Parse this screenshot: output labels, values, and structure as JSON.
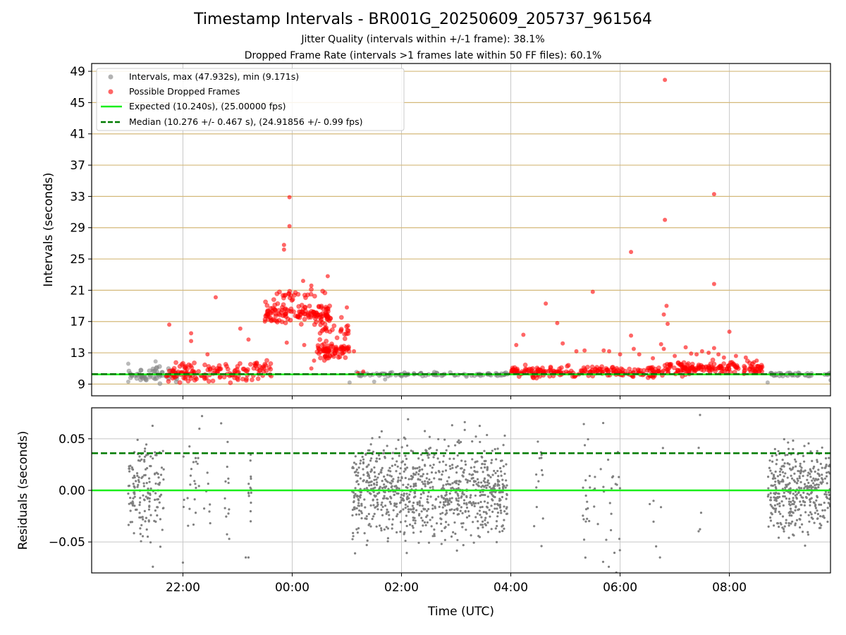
{
  "figure": {
    "title": "Timestamp Intervals - BR001G_20250609_205737_961564",
    "subtitle_1": "Jitter Quality (intervals within +/-1 frame): 38.1%",
    "subtitle_2": "Dropped Frame Rate (intervals >1 frames late within 50 FF files): 60.1%"
  },
  "colors": {
    "intervals": "#808080",
    "dropped": "#ff0000",
    "expected": "#1aee1a",
    "median": "#007a00",
    "hgrid_top": "#d4b97a",
    "grid": "#c8c8c8"
  },
  "chart_data": [
    {
      "type": "scatter",
      "panel": "intervals",
      "ylabel": "Intervals (seconds)",
      "xlabel": "",
      "x_unit": "hours UTC (values above 24 are the next day)",
      "xlim": [
        20.33,
        33.85
      ],
      "ylim": [
        7.5,
        50
      ],
      "yticks": [
        9,
        13,
        17,
        21,
        25,
        29,
        33,
        37,
        41,
        45,
        49
      ],
      "xticks": [
        22,
        24,
        26,
        28,
        30,
        32
      ],
      "xtick_labels": [
        "22:00",
        "00:00",
        "02:00",
        "04:00",
        "06:00",
        "08:00"
      ],
      "grid": true,
      "legend_position": "top-left",
      "legend": [
        "Intervals, max (47.932s), min (9.171s)",
        "Possible Dropped Frames",
        "Expected (10.240s), (25.00000 fps)",
        "Median (10.276 +/- 0.467 s), (24.91856 +/- 0.99 fps)"
      ],
      "lines": {
        "expected": 10.24,
        "median": 10.276
      },
      "series": [
        {
          "name": "Intervals, max (47.932s), min (9.171s)",
          "bands": [
            {
              "x0": 21.0,
              "x1": 21.9,
              "center": 10.2,
              "spread": 0.8,
              "n": 60
            },
            {
              "x0": 25.1,
              "x1": 27.95,
              "center": 10.24,
              "spread": 0.2,
              "n": 90
            },
            {
              "x0": 32.7,
              "x1": 33.85,
              "center": 10.24,
              "spread": 0.2,
              "n": 40
            }
          ],
          "points": [
            [
              21.0,
              9.3
            ],
            [
              21.0,
              11.6
            ],
            [
              21.5,
              11.9
            ],
            [
              25.05,
              9.2
            ],
            [
              25.5,
              9.3
            ],
            [
              25.7,
              9.6
            ],
            [
              32.7,
              9.2
            ],
            [
              33.85,
              9.5
            ]
          ]
        },
        {
          "name": "Possible Dropped Frames",
          "bands": [
            {
              "x0": 21.7,
              "x1": 22.2,
              "center": 10.5,
              "spread": 1.0,
              "n": 50
            },
            {
              "x0": 22.2,
              "x1": 23.3,
              "center": 10.5,
              "spread": 1.2,
              "n": 70
            },
            {
              "x0": 23.3,
              "x1": 23.65,
              "center": 11.0,
              "spread": 1.5,
              "n": 25
            },
            {
              "x0": 23.5,
              "x1": 24.7,
              "center": 18.0,
              "spread": 1.2,
              "n": 140
            },
            {
              "x0": 23.6,
              "x1": 24.6,
              "center": 20.5,
              "spread": 0.8,
              "n": 25
            },
            {
              "x0": 24.45,
              "x1": 25.05,
              "center": 13.2,
              "spread": 0.8,
              "n": 80
            },
            {
              "x0": 24.5,
              "x1": 25.05,
              "center": 16.0,
              "spread": 1.0,
              "n": 25
            },
            {
              "x0": 28.0,
              "x1": 29.6,
              "center": 10.6,
              "spread": 0.6,
              "n": 120
            },
            {
              "x0": 29.6,
              "x1": 30.8,
              "center": 10.6,
              "spread": 0.6,
              "n": 90
            },
            {
              "x0": 30.8,
              "x1": 32.6,
              "center": 11.0,
              "spread": 0.7,
              "n": 160
            }
          ],
          "points": [
            [
              21.75,
              16.6
            ],
            [
              22.15,
              15.5
            ],
            [
              22.15,
              14.5
            ],
            [
              22.6,
              20.1
            ],
            [
              22.45,
              12.8
            ],
            [
              23.05,
              16.1
            ],
            [
              23.2,
              14.7
            ],
            [
              23.5,
              17.0
            ],
            [
              23.9,
              14.3
            ],
            [
              23.85,
              26.8
            ],
            [
              23.85,
              26.2
            ],
            [
              23.95,
              29.2
            ],
            [
              23.95,
              32.9
            ],
            [
              24.2,
              22.2
            ],
            [
              24.35,
              21.6
            ],
            [
              24.65,
              22.8
            ],
            [
              25.0,
              18.8
            ],
            [
              24.22,
              14.0
            ],
            [
              24.4,
              12.0
            ],
            [
              24.35,
              11.0
            ],
            [
              25.13,
              13.2
            ],
            [
              25.2,
              10.4
            ],
            [
              25.3,
              10.6
            ],
            [
              28.1,
              14.0
            ],
            [
              28.23,
              15.3
            ],
            [
              28.64,
              19.3
            ],
            [
              28.85,
              16.8
            ],
            [
              28.95,
              14.2
            ],
            [
              29.2,
              13.2
            ],
            [
              29.35,
              13.3
            ],
            [
              29.5,
              20.8
            ],
            [
              29.7,
              13.3
            ],
            [
              29.8,
              13.2
            ],
            [
              30.0,
              12.8
            ],
            [
              30.2,
              15.2
            ],
            [
              30.2,
              25.9
            ],
            [
              30.25,
              13.5
            ],
            [
              30.35,
              12.8
            ],
            [
              30.6,
              12.3
            ],
            [
              30.75,
              14.1
            ],
            [
              30.8,
              13.5
            ],
            [
              30.8,
              17.9
            ],
            [
              30.82,
              47.9
            ],
            [
              30.82,
              30.0
            ],
            [
              30.85,
              19.0
            ],
            [
              30.87,
              16.7
            ],
            [
              31.0,
              12.6
            ],
            [
              31.2,
              13.7
            ],
            [
              31.3,
              12.9
            ],
            [
              31.4,
              12.8
            ],
            [
              31.5,
              13.2
            ],
            [
              31.62,
              13.0
            ],
            [
              31.72,
              33.3
            ],
            [
              31.72,
              21.8
            ],
            [
              31.72,
              13.6
            ],
            [
              31.8,
              12.8
            ],
            [
              31.9,
              12.4
            ],
            [
              32.0,
              15.7
            ],
            [
              32.12,
              12.6
            ],
            [
              32.3,
              12.4
            ],
            [
              32.45,
              11.8
            ],
            [
              32.5,
              12.0
            ]
          ]
        }
      ]
    },
    {
      "type": "scatter",
      "panel": "residuals",
      "ylabel": "Residuals (seconds)",
      "xlabel": "Time (UTC)",
      "x_unit": "hours UTC (values above 24 are the next day)",
      "xlim": [
        20.33,
        33.85
      ],
      "ylim": [
        -0.08,
        0.08
      ],
      "yticks": [
        -0.05,
        0.0,
        0.05
      ],
      "ytick_labels": [
        "−0.05",
        "0.00",
        "0.05"
      ],
      "xticks": [
        22,
        24,
        26,
        28,
        30,
        32
      ],
      "xtick_labels": [
        "22:00",
        "00:00",
        "02:00",
        "04:00",
        "06:00",
        "08:00"
      ],
      "grid": true,
      "lines": {
        "expected": 0.0,
        "median": 0.036
      },
      "series": [
        {
          "name": "",
          "bands": [
            {
              "x0": 21.0,
              "x1": 21.65,
              "sd": 0.022,
              "n": 160
            },
            {
              "x0": 22.0,
              "x1": 22.5,
              "sd": 0.03,
              "n": 30
            },
            {
              "x0": 22.75,
              "x1": 22.85,
              "sd": 0.028,
              "n": 12
            },
            {
              "x0": 23.2,
              "x1": 23.25,
              "sd": 0.03,
              "n": 14
            },
            {
              "x0": 25.1,
              "x1": 27.95,
              "sd": 0.023,
              "n": 900
            },
            {
              "x0": 28.4,
              "x1": 28.6,
              "sd": 0.04,
              "n": 14
            },
            {
              "x0": 29.3,
              "x1": 29.45,
              "sd": 0.04,
              "n": 18
            },
            {
              "x0": 29.5,
              "x1": 30.0,
              "sd": 0.04,
              "n": 30
            },
            {
              "x0": 30.5,
              "x1": 30.9,
              "sd": 0.045,
              "n": 6
            },
            {
              "x0": 31.4,
              "x1": 31.5,
              "sd": 0.04,
              "n": 5
            },
            {
              "x0": 32.7,
              "x1": 33.85,
              "sd": 0.02,
              "n": 380
            }
          ],
          "points": [
            [
              21.45,
              -0.074
            ],
            [
              22.0,
              -0.07
            ],
            [
              22.35,
              0.072
            ],
            [
              22.7,
              0.065
            ],
            [
              23.15,
              -0.065
            ],
            [
              23.2,
              -0.065
            ],
            [
              25.15,
              -0.061
            ],
            [
              30.73,
              -0.065
            ]
          ]
        }
      ]
    }
  ]
}
